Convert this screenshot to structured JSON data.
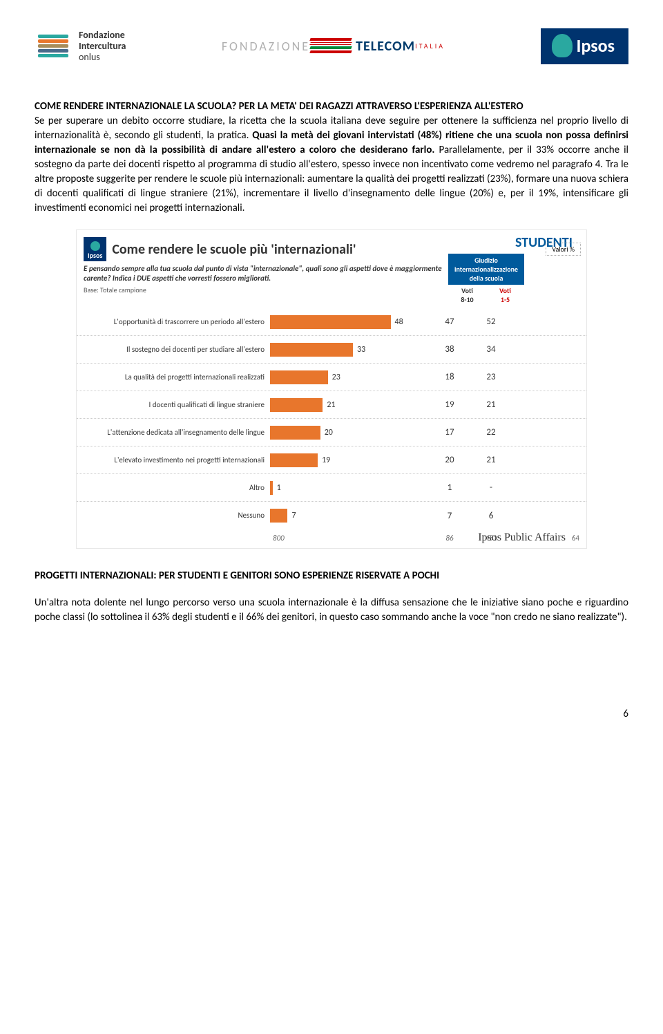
{
  "header": {
    "intercultura": {
      "line1": "Fondazione",
      "line2": "Intercultura",
      "line3": "onlus",
      "bar_colors": [
        "#2aa8a0",
        "#e8762c",
        "#a88c5a",
        "#4a6a8a",
        "#2aa8a0"
      ]
    },
    "telecom": {
      "top": "FONDAZIONE",
      "name": "TELECOM",
      "sub": "ITALIA"
    },
    "ipsos": {
      "label": "Ipsos"
    }
  },
  "section1": {
    "title": "COME RENDERE INTERNAZIONALE LA SCUOLA? PER LA META' DEI RAGAZZI ATTRAVERSO L'ESPERIENZA ALL'ESTERO",
    "para": "Se per superare un debito occorre studiare, la ricetta che la scuola italiana deve seguire per ottenere la sufficienza nel proprio livello di internazionalità è, secondo gli studenti, la pratica.\nQuasi la metà dei giovani intervistati (48%) ritiene che una scuola non possa definirsi internazionale se non dà la possibilità di andare all'estero a coloro che desiderano farlo.\nParallelamente, per il 33% occorre anche il sostegno da parte dei docenti rispetto al programma di studio all'estero, spesso invece non incentivato come vedremo nel paragrafo 4. Tra le altre proposte suggerite per rendere le scuole più internazionali: aumentare la qualità dei progetti realizzati (23%), formare una nuova schiera di docenti qualificati di lingue straniere (21%), incrementare il livello d'insegnamento delle lingue (20%) e, per il 19%, intensificare gli investimenti economici nei progetti internazionali.",
    "bold_span": "Quasi la metà dei giovani intervistati (48%) ritiene che una scuola non possa definirsi internazionale se non dà la possibilità di andare all'estero a coloro che desiderano farlo."
  },
  "chart": {
    "badge": "STUDENTI",
    "ipsos_mini": "Ipsos",
    "title": "Come rendere le scuole più 'internazionali'",
    "question": "E pensando sempre alla tua scuola dal punto di vista \"internazionale\", quali sono gli aspetti dove è maggiormente carente? Indica i DUE aspetti che vorresti fossero migliorati.",
    "base": "Base: Totale campione",
    "judgement_header": "Giudizio internazionalizzazione della scuola",
    "col_high": "Voti\n8-10",
    "col_low": "Voti\n1-5",
    "valori": "Valori %",
    "bar_color": "#e8762c",
    "bar_max": 55,
    "rows": [
      {
        "label": "L'opportunità di trascorrere un periodo all'estero",
        "value": 48,
        "high": 47,
        "low": 52
      },
      {
        "label": "Il sostegno dei docenti per studiare all'estero",
        "value": 33,
        "high": 38,
        "low": 34
      },
      {
        "label": "La qualità dei progetti internazionali realizzati",
        "value": 23,
        "high": 18,
        "low": 23
      },
      {
        "label": "I docenti qualificati di lingue straniere",
        "value": 21,
        "high": 19,
        "low": 21
      },
      {
        "label": "L'attenzione dedicata all'insegnamento delle lingue",
        "value": 20,
        "high": 17,
        "low": 22
      },
      {
        "label": "L'elevato investimento nei progetti internazionali",
        "value": 19,
        "high": 20,
        "low": 21
      },
      {
        "label": "Altro",
        "value": 1,
        "high": 1,
        "low": "-"
      },
      {
        "label": "Nessuno",
        "value": 7,
        "high": 7,
        "low": 6
      }
    ],
    "footer": {
      "total": "800",
      "high_n": "86",
      "low_n": "451"
    },
    "affairs": "Ipsos Public Affairs",
    "slide_num": "64"
  },
  "section2": {
    "title": "PROGETTI INTERNAZIONALI: PER STUDENTI E GENITORI SONO ESPERIENZE RISERVATE A POCHI",
    "para": "Un'altra nota dolente nel lungo percorso verso una scuola internazionale è la diffusa sensazione che le iniziative siano poche e riguardino poche classi (lo sottolinea il 63% degli studenti e il 66% dei genitori, in questo caso sommando anche la voce \"non credo ne siano realizzate\")."
  },
  "page_number": "6"
}
